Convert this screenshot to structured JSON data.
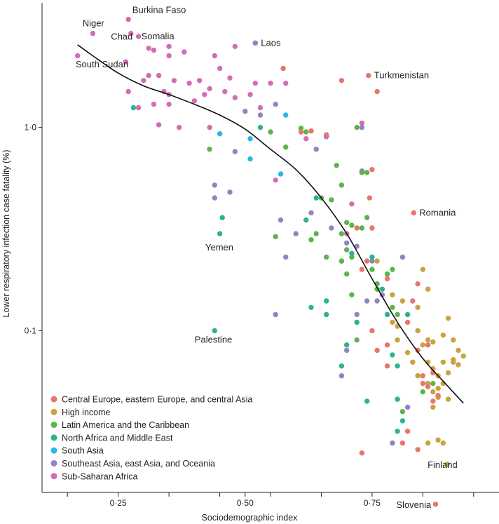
{
  "chart_data": {
    "type": "scatter",
    "xlabel": "Sociodemographic index",
    "ylabel": "Lower respiratory infection case fatality (%)",
    "xlim": [
      0.1,
      1.0
    ],
    "ylim": [
      0.016,
      4.1
    ],
    "yscale": "log",
    "x_ticks": [
      {
        "value": 0.25,
        "label": "0·25"
      },
      {
        "value": 0.5,
        "label": "0·50"
      },
      {
        "value": 0.75,
        "label": "0·75"
      }
    ],
    "x_minor_ticks": [
      0.15,
      0.35,
      0.45,
      0.55,
      0.65,
      0.85,
      0.95
    ],
    "y_ticks": [
      {
        "value": 1.0,
        "label": "1·0"
      },
      {
        "value": 0.1,
        "label": "0·1"
      }
    ],
    "trend": {
      "x": [
        0.17,
        0.2,
        0.25,
        0.3,
        0.35,
        0.4,
        0.45,
        0.5,
        0.55,
        0.6,
        0.65,
        0.7,
        0.75,
        0.8,
        0.85,
        0.9,
        0.93
      ],
      "y": [
        2.55,
        2.25,
        1.85,
        1.6,
        1.45,
        1.3,
        1.15,
        0.98,
        0.78,
        0.62,
        0.45,
        0.3,
        0.18,
        0.11,
        0.073,
        0.053,
        0.044
      ]
    },
    "legend": {
      "position": "bottom-left",
      "entries": [
        {
          "name": "Central Europe, eastern Europe, and central Asia",
          "color": "#e8756e"
        },
        {
          "name": "High income",
          "color": "#c9a33e"
        },
        {
          "name": "Latin America and the Caribbean",
          "color": "#5bb54a"
        },
        {
          "name": "North Africa and Middle East",
          "color": "#2db38d"
        },
        {
          "name": "South Asia",
          "color": "#29b8e3"
        },
        {
          "name": "Southeast Asia, east Asia, and Oceania",
          "color": "#9184c4"
        },
        {
          "name": "Sub-Saharan Africa",
          "color": "#d16eb1"
        }
      ]
    },
    "annotations": [
      {
        "text": "Niger",
        "x": 0.199,
        "y": 2.9
      },
      {
        "text": "Burkina Faso",
        "x": 0.275,
        "y": 3.4
      },
      {
        "text": "Chad",
        "x": 0.277,
        "y": 2.9
      },
      {
        "text": "Somalia",
        "x": 0.29,
        "y": 2.8
      },
      {
        "text": "South Sudan",
        "x": 0.173,
        "y": 2.3
      },
      {
        "text": "Laos",
        "x": 0.52,
        "y": 2.6
      },
      {
        "text": "Turkmenistan",
        "x": 0.743,
        "y": 1.8
      },
      {
        "text": "Romania",
        "x": 0.832,
        "y": 0.38
      },
      {
        "text": "Yemen",
        "x": 0.452,
        "y": 0.31
      },
      {
        "text": "Palestine",
        "x": 0.442,
        "y": 0.1
      },
      {
        "text": "Finland",
        "x": 0.898,
        "y": 0.022
      },
      {
        "text": "Slovenia",
        "x": 0.875,
        "y": 0.014
      }
    ],
    "series": [
      {
        "name": "Sub-Saharan Africa",
        "points": [
          [
            0.17,
            2.25
          ],
          [
            0.2,
            2.9
          ],
          [
            0.27,
            3.4
          ],
          [
            0.275,
            2.9
          ],
          [
            0.29,
            2.8
          ],
          [
            0.265,
            2.1
          ],
          [
            0.31,
            2.45
          ],
          [
            0.32,
            2.4
          ],
          [
            0.35,
            2.5
          ],
          [
            0.38,
            2.35
          ],
          [
            0.44,
            2.25
          ],
          [
            0.48,
            2.5
          ],
          [
            0.45,
            1.95
          ],
          [
            0.3,
            1.7
          ],
          [
            0.33,
            1.8
          ],
          [
            0.36,
            1.7
          ],
          [
            0.39,
            1.65
          ],
          [
            0.41,
            1.7
          ],
          [
            0.43,
            1.55
          ],
          [
            0.47,
            1.75
          ],
          [
            0.52,
            1.65
          ],
          [
            0.55,
            1.65
          ],
          [
            0.58,
            1.65
          ],
          [
            0.27,
            1.5
          ],
          [
            0.34,
            1.5
          ],
          [
            0.35,
            1.45
          ],
          [
            0.31,
            1.8
          ],
          [
            0.42,
            1.45
          ],
          [
            0.46,
            1.5
          ],
          [
            0.48,
            1.4
          ],
          [
            0.51,
            1.45
          ],
          [
            0.32,
            1.3
          ],
          [
            0.35,
            1.3
          ],
          [
            0.29,
            1.25
          ],
          [
            0.4,
            1.35
          ],
          [
            0.53,
            1.25
          ],
          [
            0.33,
            1.03
          ],
          [
            0.37,
            1.0
          ],
          [
            0.43,
            1.0
          ],
          [
            0.35,
            2.25
          ],
          [
            0.62,
            0.88
          ],
          [
            0.66,
            0.9
          ],
          [
            0.56,
            0.55
          ],
          [
            0.7,
            0.3
          ],
          [
            0.73,
            1.05
          ],
          [
            0.71,
            0.42
          ],
          [
            0.52,
            2.6
          ]
        ]
      },
      {
        "name": "Southeast Asia, east Asia, and Oceania",
        "points": [
          [
            0.52,
            2.6
          ],
          [
            0.5,
            1.2
          ],
          [
            0.53,
            1.15
          ],
          [
            0.56,
            1.3
          ],
          [
            0.44,
            0.52
          ],
          [
            0.44,
            0.45
          ],
          [
            0.47,
            0.48
          ],
          [
            0.48,
            0.76
          ],
          [
            0.64,
            0.78
          ],
          [
            0.66,
            0.9
          ],
          [
            0.57,
            0.35
          ],
          [
            0.6,
            0.3
          ],
          [
            0.63,
            0.38
          ],
          [
            0.67,
            0.32
          ],
          [
            0.58,
            0.23
          ],
          [
            0.56,
            0.12
          ],
          [
            0.7,
            0.27
          ],
          [
            0.72,
            0.26
          ],
          [
            0.73,
            0.61
          ],
          [
            0.75,
            0.22
          ],
          [
            0.74,
            0.14
          ],
          [
            0.72,
            0.12
          ],
          [
            0.7,
            0.08
          ],
          [
            0.69,
            0.06
          ],
          [
            0.81,
            0.23
          ],
          [
            0.77,
            0.15
          ],
          [
            0.79,
            0.028
          ],
          [
            0.86,
            0.055
          ],
          [
            0.73,
            1.0
          ],
          [
            0.76,
            0.14
          ],
          [
            0.82,
            0.042
          ]
        ]
      },
      {
        "name": "South Asia",
        "points": [
          [
            0.45,
            0.93
          ],
          [
            0.51,
            0.88
          ],
          [
            0.51,
            0.7
          ],
          [
            0.57,
            0.59
          ],
          [
            0.58,
            1.15
          ]
        ]
      },
      {
        "name": "North Africa and Middle East",
        "points": [
          [
            0.28,
            1.25
          ],
          [
            0.45,
            0.3
          ],
          [
            0.455,
            0.36
          ],
          [
            0.44,
            0.1
          ],
          [
            0.53,
            1.0
          ],
          [
            0.62,
            0.35
          ],
          [
            0.64,
            0.45
          ],
          [
            0.63,
            0.13
          ],
          [
            0.66,
            0.14
          ],
          [
            0.66,
            0.12
          ],
          [
            0.69,
            0.22
          ],
          [
            0.7,
            0.085
          ],
          [
            0.69,
            0.067
          ],
          [
            0.72,
            0.11
          ],
          [
            0.74,
            0.045
          ],
          [
            0.75,
            0.23
          ],
          [
            0.77,
            0.16
          ],
          [
            0.78,
            0.19
          ],
          [
            0.78,
            0.12
          ],
          [
            0.79,
            0.076
          ],
          [
            0.8,
            0.046
          ],
          [
            0.8,
            0.067
          ],
          [
            0.81,
            0.036
          ],
          [
            0.8,
            0.032
          ],
          [
            0.82,
            0.12
          ],
          [
            0.71,
            0.24
          ]
        ]
      },
      {
        "name": "Latin America and the Caribbean",
        "points": [
          [
            0.43,
            0.78
          ],
          [
            0.55,
            0.95
          ],
          [
            0.58,
            0.8
          ],
          [
            0.61,
            0.99
          ],
          [
            0.62,
            0.95
          ],
          [
            0.68,
            0.65
          ],
          [
            0.69,
            0.52
          ],
          [
            0.72,
            1.0
          ],
          [
            0.73,
            0.6
          ],
          [
            0.74,
            0.6
          ],
          [
            0.74,
            0.36
          ],
          [
            0.73,
            0.32
          ],
          [
            0.65,
            0.45
          ],
          [
            0.7,
            0.34
          ],
          [
            0.71,
            0.33
          ],
          [
            0.69,
            0.3
          ],
          [
            0.67,
            0.44
          ],
          [
            0.63,
            0.28
          ],
          [
            0.64,
            0.3
          ],
          [
            0.56,
            0.29
          ],
          [
            0.66,
            0.23
          ],
          [
            0.7,
            0.25
          ],
          [
            0.71,
            0.23
          ],
          [
            0.69,
            0.22
          ],
          [
            0.7,
            0.19
          ],
          [
            0.71,
            0.15
          ],
          [
            0.72,
            0.09
          ],
          [
            0.76,
            0.16
          ],
          [
            0.78,
            0.19
          ],
          [
            0.79,
            0.2
          ],
          [
            0.75,
            0.2
          ],
          [
            0.76,
            0.17
          ],
          [
            0.79,
            0.13
          ],
          [
            0.8,
            0.12
          ],
          [
            0.81,
            0.04
          ],
          [
            0.85,
            0.05
          ],
          [
            0.87,
            0.055
          ]
        ]
      },
      {
        "name": "High income",
        "points": [
          [
            0.76,
            0.22
          ],
          [
            0.79,
            0.15
          ],
          [
            0.79,
            0.11
          ],
          [
            0.8,
            0.105
          ],
          [
            0.81,
            0.14
          ],
          [
            0.84,
            0.13
          ],
          [
            0.85,
            0.2
          ],
          [
            0.86,
            0.16
          ],
          [
            0.84,
            0.1
          ],
          [
            0.85,
            0.085
          ],
          [
            0.86,
            0.09
          ],
          [
            0.87,
            0.088
          ],
          [
            0.89,
            0.095
          ],
          [
            0.9,
            0.115
          ],
          [
            0.91,
            0.09
          ],
          [
            0.92,
            0.08
          ],
          [
            0.93,
            0.075
          ],
          [
            0.91,
            0.072
          ],
          [
            0.92,
            0.068
          ],
          [
            0.86,
            0.07
          ],
          [
            0.87,
            0.065
          ],
          [
            0.88,
            0.06
          ],
          [
            0.89,
            0.07
          ],
          [
            0.9,
            0.062
          ],
          [
            0.88,
            0.052
          ],
          [
            0.89,
            0.055
          ],
          [
            0.86,
            0.055
          ],
          [
            0.87,
            0.05
          ],
          [
            0.88,
            0.047
          ],
          [
            0.9,
            0.046
          ],
          [
            0.87,
            0.042
          ],
          [
            0.86,
            0.028
          ],
          [
            0.88,
            0.029
          ],
          [
            0.89,
            0.028
          ],
          [
            0.898,
            0.022
          ],
          [
            0.82,
            0.078
          ],
          [
            0.83,
            0.07
          ],
          [
            0.8,
            0.09
          ],
          [
            0.84,
            0.06
          ],
          [
            0.91,
            0.07
          ]
        ]
      },
      {
        "name": "Central Europe, eastern Europe, and central Asia",
        "points": [
          [
            0.575,
            1.95
          ],
          [
            0.69,
            1.7
          ],
          [
            0.743,
            1.8
          ],
          [
            0.76,
            1.5
          ],
          [
            0.61,
            0.95
          ],
          [
            0.63,
            0.96
          ],
          [
            0.66,
            0.92
          ],
          [
            0.75,
            0.62
          ],
          [
            0.745,
            0.45
          ],
          [
            0.832,
            0.38
          ],
          [
            0.75,
            0.32
          ],
          [
            0.72,
            0.32
          ],
          [
            0.74,
            0.22
          ],
          [
            0.73,
            0.2
          ],
          [
            0.78,
            0.18
          ],
          [
            0.83,
            0.14
          ],
          [
            0.82,
            0.11
          ],
          [
            0.75,
            0.1
          ],
          [
            0.78,
            0.085
          ],
          [
            0.78,
            0.067
          ],
          [
            0.76,
            0.08
          ],
          [
            0.84,
            0.08
          ],
          [
            0.85,
            0.06
          ],
          [
            0.85,
            0.055
          ],
          [
            0.87,
            0.062
          ],
          [
            0.86,
            0.053
          ],
          [
            0.88,
            0.048
          ],
          [
            0.87,
            0.045
          ],
          [
            0.82,
            0.032
          ],
          [
            0.81,
            0.028
          ],
          [
            0.84,
            0.026
          ],
          [
            0.73,
            0.025
          ],
          [
            0.875,
            0.014
          ],
          [
            0.84,
            0.17
          ],
          [
            0.86,
            0.085
          ]
        ]
      }
    ]
  }
}
